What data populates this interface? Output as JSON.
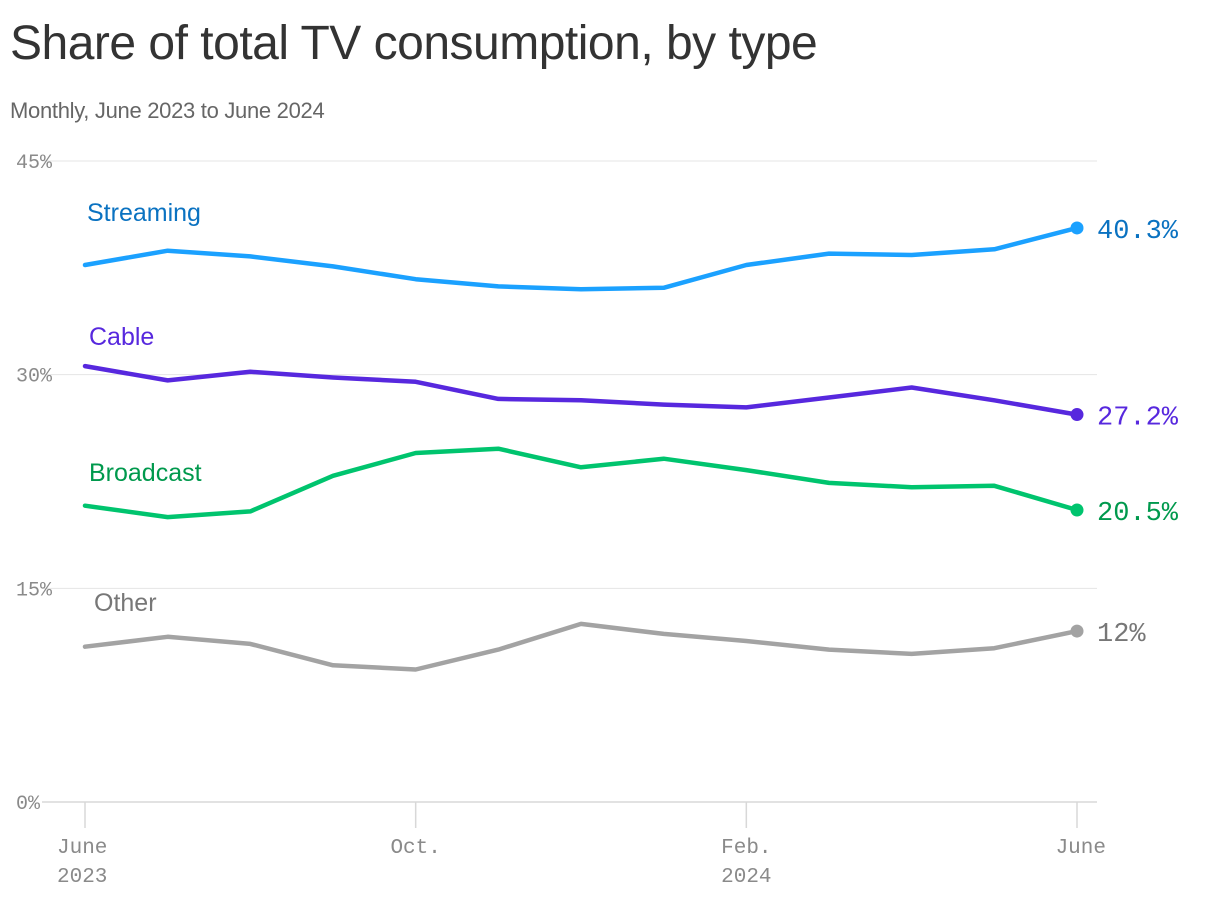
{
  "title": "Share of total TV consumption, by type",
  "subtitle": "Monthly, June 2023 to June 2024",
  "chart_data": {
    "type": "line",
    "x": [
      "2023-06",
      "2023-07",
      "2023-08",
      "2023-09",
      "2023-10",
      "2023-11",
      "2023-12",
      "2024-01",
      "2024-02",
      "2024-03",
      "2024-04",
      "2024-05",
      "2024-06"
    ],
    "ylim": [
      0,
      45
    ],
    "yticks": [
      0,
      15,
      30,
      45
    ],
    "ytick_labels": [
      "0%",
      "15%",
      "30%",
      "45%"
    ],
    "xticks": [
      {
        "x": "2023-06",
        "line1": "June",
        "line2": "2023"
      },
      {
        "x": "2023-10",
        "line1": "Oct.",
        "line2": ""
      },
      {
        "x": "2024-02",
        "line1": "Feb.",
        "line2": "2024"
      },
      {
        "x": "2024-06",
        "line1": "June",
        "line2": ""
      }
    ],
    "grid": true,
    "series": [
      {
        "name": "Streaming",
        "color": "#1ba1ff",
        "label_color": "#0a72c1",
        "end_label": "40.3%",
        "values": [
          37.7,
          38.7,
          38.3,
          37.6,
          36.7,
          36.2,
          36.0,
          36.1,
          37.7,
          38.5,
          38.4,
          38.8,
          40.3
        ]
      },
      {
        "name": "Cable",
        "color": "#5728de",
        "label_color": "#5728de",
        "end_label": "27.2%",
        "values": [
          30.6,
          29.6,
          30.2,
          29.8,
          29.5,
          28.3,
          28.2,
          27.9,
          27.7,
          28.4,
          29.1,
          28.2,
          27.2
        ]
      },
      {
        "name": "Broadcast",
        "color": "#00c46e",
        "label_color": "#00994d",
        "end_label": "20.5%",
        "values": [
          20.8,
          20.0,
          20.4,
          22.9,
          24.5,
          24.8,
          23.5,
          24.1,
          23.3,
          22.4,
          22.1,
          22.2,
          20.5
        ]
      },
      {
        "name": "Other",
        "color": "#a3a3a3",
        "label_color": "#777777",
        "end_label": "12%",
        "values": [
          10.9,
          11.6,
          11.1,
          9.6,
          9.3,
          10.7,
          12.5,
          11.8,
          11.3,
          10.7,
          10.4,
          10.8,
          12.0
        ]
      }
    ]
  }
}
